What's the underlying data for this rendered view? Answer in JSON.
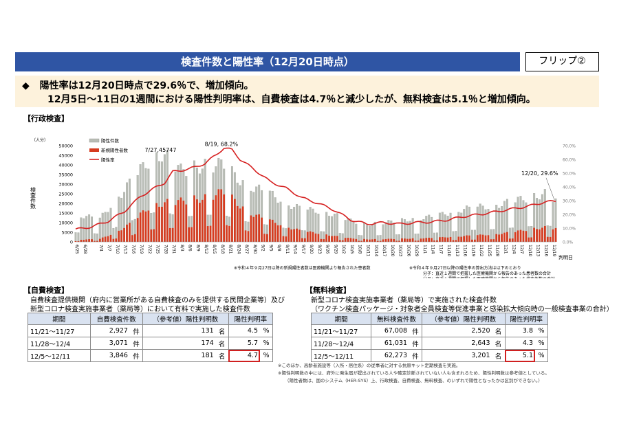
{
  "header": {
    "title": "検査件数と陽性率（12月20日時点）",
    "flip": "フリップ②"
  },
  "summary": {
    "bullet": "◆",
    "line1": "陽性率は12月20日時点で29.6％で、増加傾向。",
    "line2": "12月5日～11日の1週間における陽性判明率は、自費検査は4.7％と減少したが、無料検査は5.1％と増加傾向。"
  },
  "gov_section": {
    "label": "【行政検査】"
  },
  "chart_data": {
    "type": "bar",
    "y_unit": "（人分）",
    "ylabel": "検査件数",
    "xlabel": "判明日",
    "ylim": [
      0,
      50000
    ],
    "y2lim": [
      0,
      70
    ],
    "y_ticks": [
      "0",
      "5000",
      "10000",
      "15000",
      "20000",
      "25000",
      "30000",
      "35000",
      "40000",
      "45000",
      "50000"
    ],
    "y2_ticks": [
      "0.0%",
      "10.0%",
      "20.0%",
      "30.0%",
      "40.0%",
      "50.0%",
      "60.0%",
      "70.0%"
    ],
    "x_labels": [
      "6/25",
      "6/28",
      "7/4",
      "7/7",
      "7/10",
      "7/13",
      "7/16",
      "7/19",
      "7/22",
      "7/25",
      "7/28",
      "7/31",
      "8/3",
      "8/6",
      "8/9",
      "8/12",
      "8/15",
      "8/18",
      "8/21",
      "8/24",
      "8/27",
      "8/30",
      "9/2",
      "9/5",
      "9/8",
      "9/11",
      "9/14",
      "9/17",
      "9/20",
      "9/23",
      "9/26",
      "9/29",
      "10/2",
      "10/5",
      "10/8",
      "10/11",
      "10/14",
      "10/17",
      "10/20",
      "10/23",
      "10/26",
      "10/29",
      "11/1",
      "11/4",
      "11/7",
      "11/10",
      "11/13",
      "11/16",
      "11/19",
      "11/22",
      "11/25",
      "11/28",
      "12/1",
      "12/4",
      "12/7",
      "12/10",
      "12/13",
      "12/16",
      "12/19"
    ],
    "legend": [
      "陽性件数",
      "新規陽性者数",
      "陽性率"
    ],
    "colors": {
      "tests": "#b9bdb6",
      "positives": "#d63b1f",
      "rate": "#d62020"
    },
    "annotations": [
      {
        "text": "7/27,45747",
        "x": "7/27",
        "y": 45747
      },
      {
        "text": "8/19, 68.2%",
        "x": "8/19",
        "y2": 68.2
      },
      {
        "text": "12/20, 29.6%",
        "x": "12/20",
        "y2": 29.6
      }
    ],
    "weekly_rate_anchors": [
      [
        "6/25",
        9
      ],
      [
        "7/1",
        11
      ],
      [
        "7/7",
        15
      ],
      [
        "7/13",
        22
      ],
      [
        "7/19",
        33
      ],
      [
        "7/25",
        40
      ],
      [
        "7/28",
        43
      ],
      [
        "7/31",
        51
      ],
      [
        "8/6",
        53
      ],
      [
        "8/12",
        57
      ],
      [
        "8/19",
        68.2
      ],
      [
        "8/22",
        67
      ],
      [
        "8/25",
        60
      ],
      [
        "8/30",
        53
      ],
      [
        "9/5",
        44
      ],
      [
        "9/11",
        39
      ],
      [
        "9/17",
        32
      ],
      [
        "9/23",
        28
      ],
      [
        "9/29",
        23
      ],
      [
        "10/5",
        16
      ],
      [
        "10/11",
        13
      ],
      [
        "10/17",
        14
      ],
      [
        "10/23",
        13
      ],
      [
        "10/29",
        14
      ],
      [
        "11/4",
        14.5
      ],
      [
        "11/10",
        16
      ],
      [
        "11/16",
        18.5
      ],
      [
        "11/22",
        20
      ],
      [
        "11/28",
        22
      ],
      [
        "12/4",
        24
      ],
      [
        "12/10",
        26
      ],
      [
        "12/16",
        29
      ],
      [
        "12/20",
        29.6
      ]
    ],
    "tests_anchors": [
      [
        "6/25",
        14000
      ],
      [
        "7/4",
        12000
      ],
      [
        "7/10",
        22000
      ],
      [
        "7/16",
        32000
      ],
      [
        "7/22",
        42000
      ],
      [
        "7/27",
        45747
      ],
      [
        "8/3",
        37000
      ],
      [
        "8/12",
        40000
      ],
      [
        "8/19",
        40000
      ],
      [
        "8/24",
        33000
      ],
      [
        "8/30",
        28000
      ],
      [
        "9/5",
        25000
      ],
      [
        "9/11",
        20000
      ],
      [
        "9/17",
        17000
      ],
      [
        "9/23",
        16000
      ],
      [
        "9/29",
        14000
      ],
      [
        "10/5",
        11000
      ],
      [
        "10/11",
        9000
      ],
      [
        "10/17",
        10000
      ],
      [
        "10/23",
        11000
      ],
      [
        "10/29",
        12000
      ],
      [
        "11/4",
        13000
      ],
      [
        "11/10",
        15000
      ],
      [
        "11/16",
        17000
      ],
      [
        "11/22",
        18000
      ],
      [
        "11/28",
        19000
      ],
      [
        "12/4",
        21000
      ],
      [
        "12/10",
        23000
      ],
      [
        "12/16",
        25000
      ],
      [
        "12/20",
        22000
      ]
    ],
    "positives_anchors": [
      [
        "6/25",
        1000
      ],
      [
        "7/4",
        1500
      ],
      [
        "7/10",
        5000
      ],
      [
        "7/16",
        10000
      ],
      [
        "7/22",
        18000
      ],
      [
        "7/27",
        20000
      ],
      [
        "8/3",
        21000
      ],
      [
        "8/12",
        23000
      ],
      [
        "8/19",
        26000
      ],
      [
        "8/24",
        20000
      ],
      [
        "8/30",
        14000
      ],
      [
        "9/5",
        11000
      ],
      [
        "9/11",
        8000
      ],
      [
        "9/17",
        5500
      ],
      [
        "9/23",
        4500
      ],
      [
        "9/29",
        3000
      ],
      [
        "10/5",
        1800
      ],
      [
        "10/11",
        1300
      ],
      [
        "10/17",
        1400
      ],
      [
        "10/23",
        1600
      ],
      [
        "10/29",
        1800
      ],
      [
        "11/4",
        2000
      ],
      [
        "11/10",
        2500
      ],
      [
        "11/16",
        3000
      ],
      [
        "11/22",
        3500
      ],
      [
        "11/28",
        4000
      ],
      [
        "12/4",
        5000
      ],
      [
        "12/10",
        6500
      ],
      [
        "12/16",
        7500
      ],
      [
        "12/20",
        7000
      ]
    ],
    "notes": [
      "※令和４年９月27日以降の新規陽性者数は医療機関より報告された患者数",
      "※令和４年９月27日以降の陽性率の算出方法は以下のとおり",
      "分子：直近１週間で把握した医療機関から報告のあった患者数の合計",
      "分母：直近１週間で把握した医療機関から報告のあった検査件数の合計"
    ]
  },
  "self_pay": {
    "label": "【自費検査】",
    "desc1": "自費検査提供機関（府内に営業所がある自費検査のみを提供する民間企業等）及び",
    "desc2": "新型コロナ検査実施事業者（薬局等）において有料で実施した検査件数",
    "headers": [
      "期間",
      "自費検査件数",
      "（参考値）陽性判明数",
      "陽性判明率"
    ],
    "rows": [
      {
        "period": "11/21～11/27",
        "count": "2,927",
        "count_unit": "件",
        "pos": "131",
        "pos_unit": "名",
        "rate": "4.5",
        "rate_unit": "%"
      },
      {
        "period": "11/28～12/4",
        "count": "3,071",
        "count_unit": "件",
        "pos": "174",
        "pos_unit": "名",
        "rate": "5.7",
        "rate_unit": "%"
      },
      {
        "period": "12/5～12/11",
        "count": "3,846",
        "count_unit": "件",
        "pos": "181",
        "pos_unit": "名",
        "rate": "4.7",
        "rate_unit": "%"
      }
    ]
  },
  "free": {
    "label": "【無料検査】",
    "desc1": "新型コロナ検査実施事業者（薬局等）で実施された検査件数",
    "desc2": "（ワクチン検査パッケージ・対象者全員検査等促進事業と感染拡大傾向時の一般検査事業の合計）",
    "headers": [
      "期間",
      "無料検査件数",
      "（参考値）陽性判明数",
      "陽性判明率"
    ],
    "rows": [
      {
        "period": "11/21～11/27",
        "count": "67,008",
        "count_unit": "件",
        "pos": "2,520",
        "pos_unit": "名",
        "rate": "3.8",
        "rate_unit": "%"
      },
      {
        "period": "11/28～12/4",
        "count": "61,031",
        "count_unit": "件",
        "pos": "2,643",
        "pos_unit": "名",
        "rate": "4.3",
        "rate_unit": "%"
      },
      {
        "period": "12/5～12/11",
        "count": "62,273",
        "count_unit": "件",
        "pos": "3,201",
        "pos_unit": "名",
        "rate": "5.1",
        "rate_unit": "%"
      }
    ]
  },
  "footnotes": [
    "※このほか、高齢者施設等（入所・居住系）の従事者に対する抗原キット定期検査を実施。",
    "※陽性判明数の中には、府外に発生届が提出されている人や確定診断されていない人も含まれるため、陽性判明数は参考値としている。",
    "（陽性者数は、国のシステム（HER-SYS）上、行政検査、自費検査、無料検査、のいずれで陽性となったかは区別ができない。）"
  ]
}
